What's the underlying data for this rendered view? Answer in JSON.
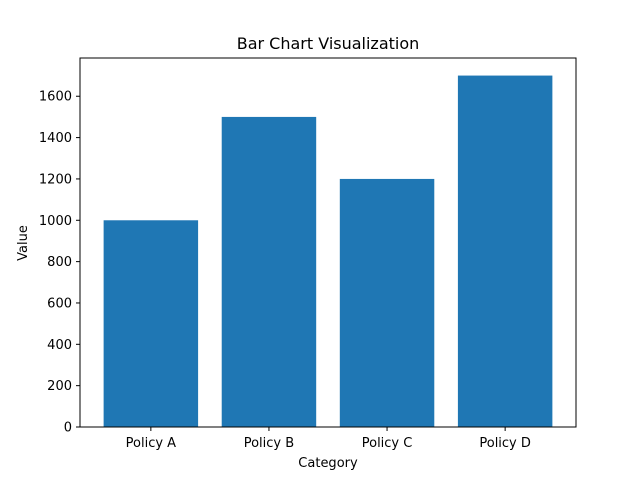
{
  "chart_data": {
    "type": "bar",
    "title": "Bar Chart Visualization",
    "xlabel": "Category",
    "ylabel": "Value",
    "categories": [
      "Policy A",
      "Policy B",
      "Policy C",
      "Policy D"
    ],
    "values": [
      1000,
      1500,
      1200,
      1700
    ],
    "ylim": [
      0,
      1785
    ],
    "yticks": [
      0,
      200,
      400,
      600,
      800,
      1000,
      1200,
      1400,
      1600
    ],
    "bar_color": "#1f77b4",
    "grid": false,
    "legend": "none"
  }
}
